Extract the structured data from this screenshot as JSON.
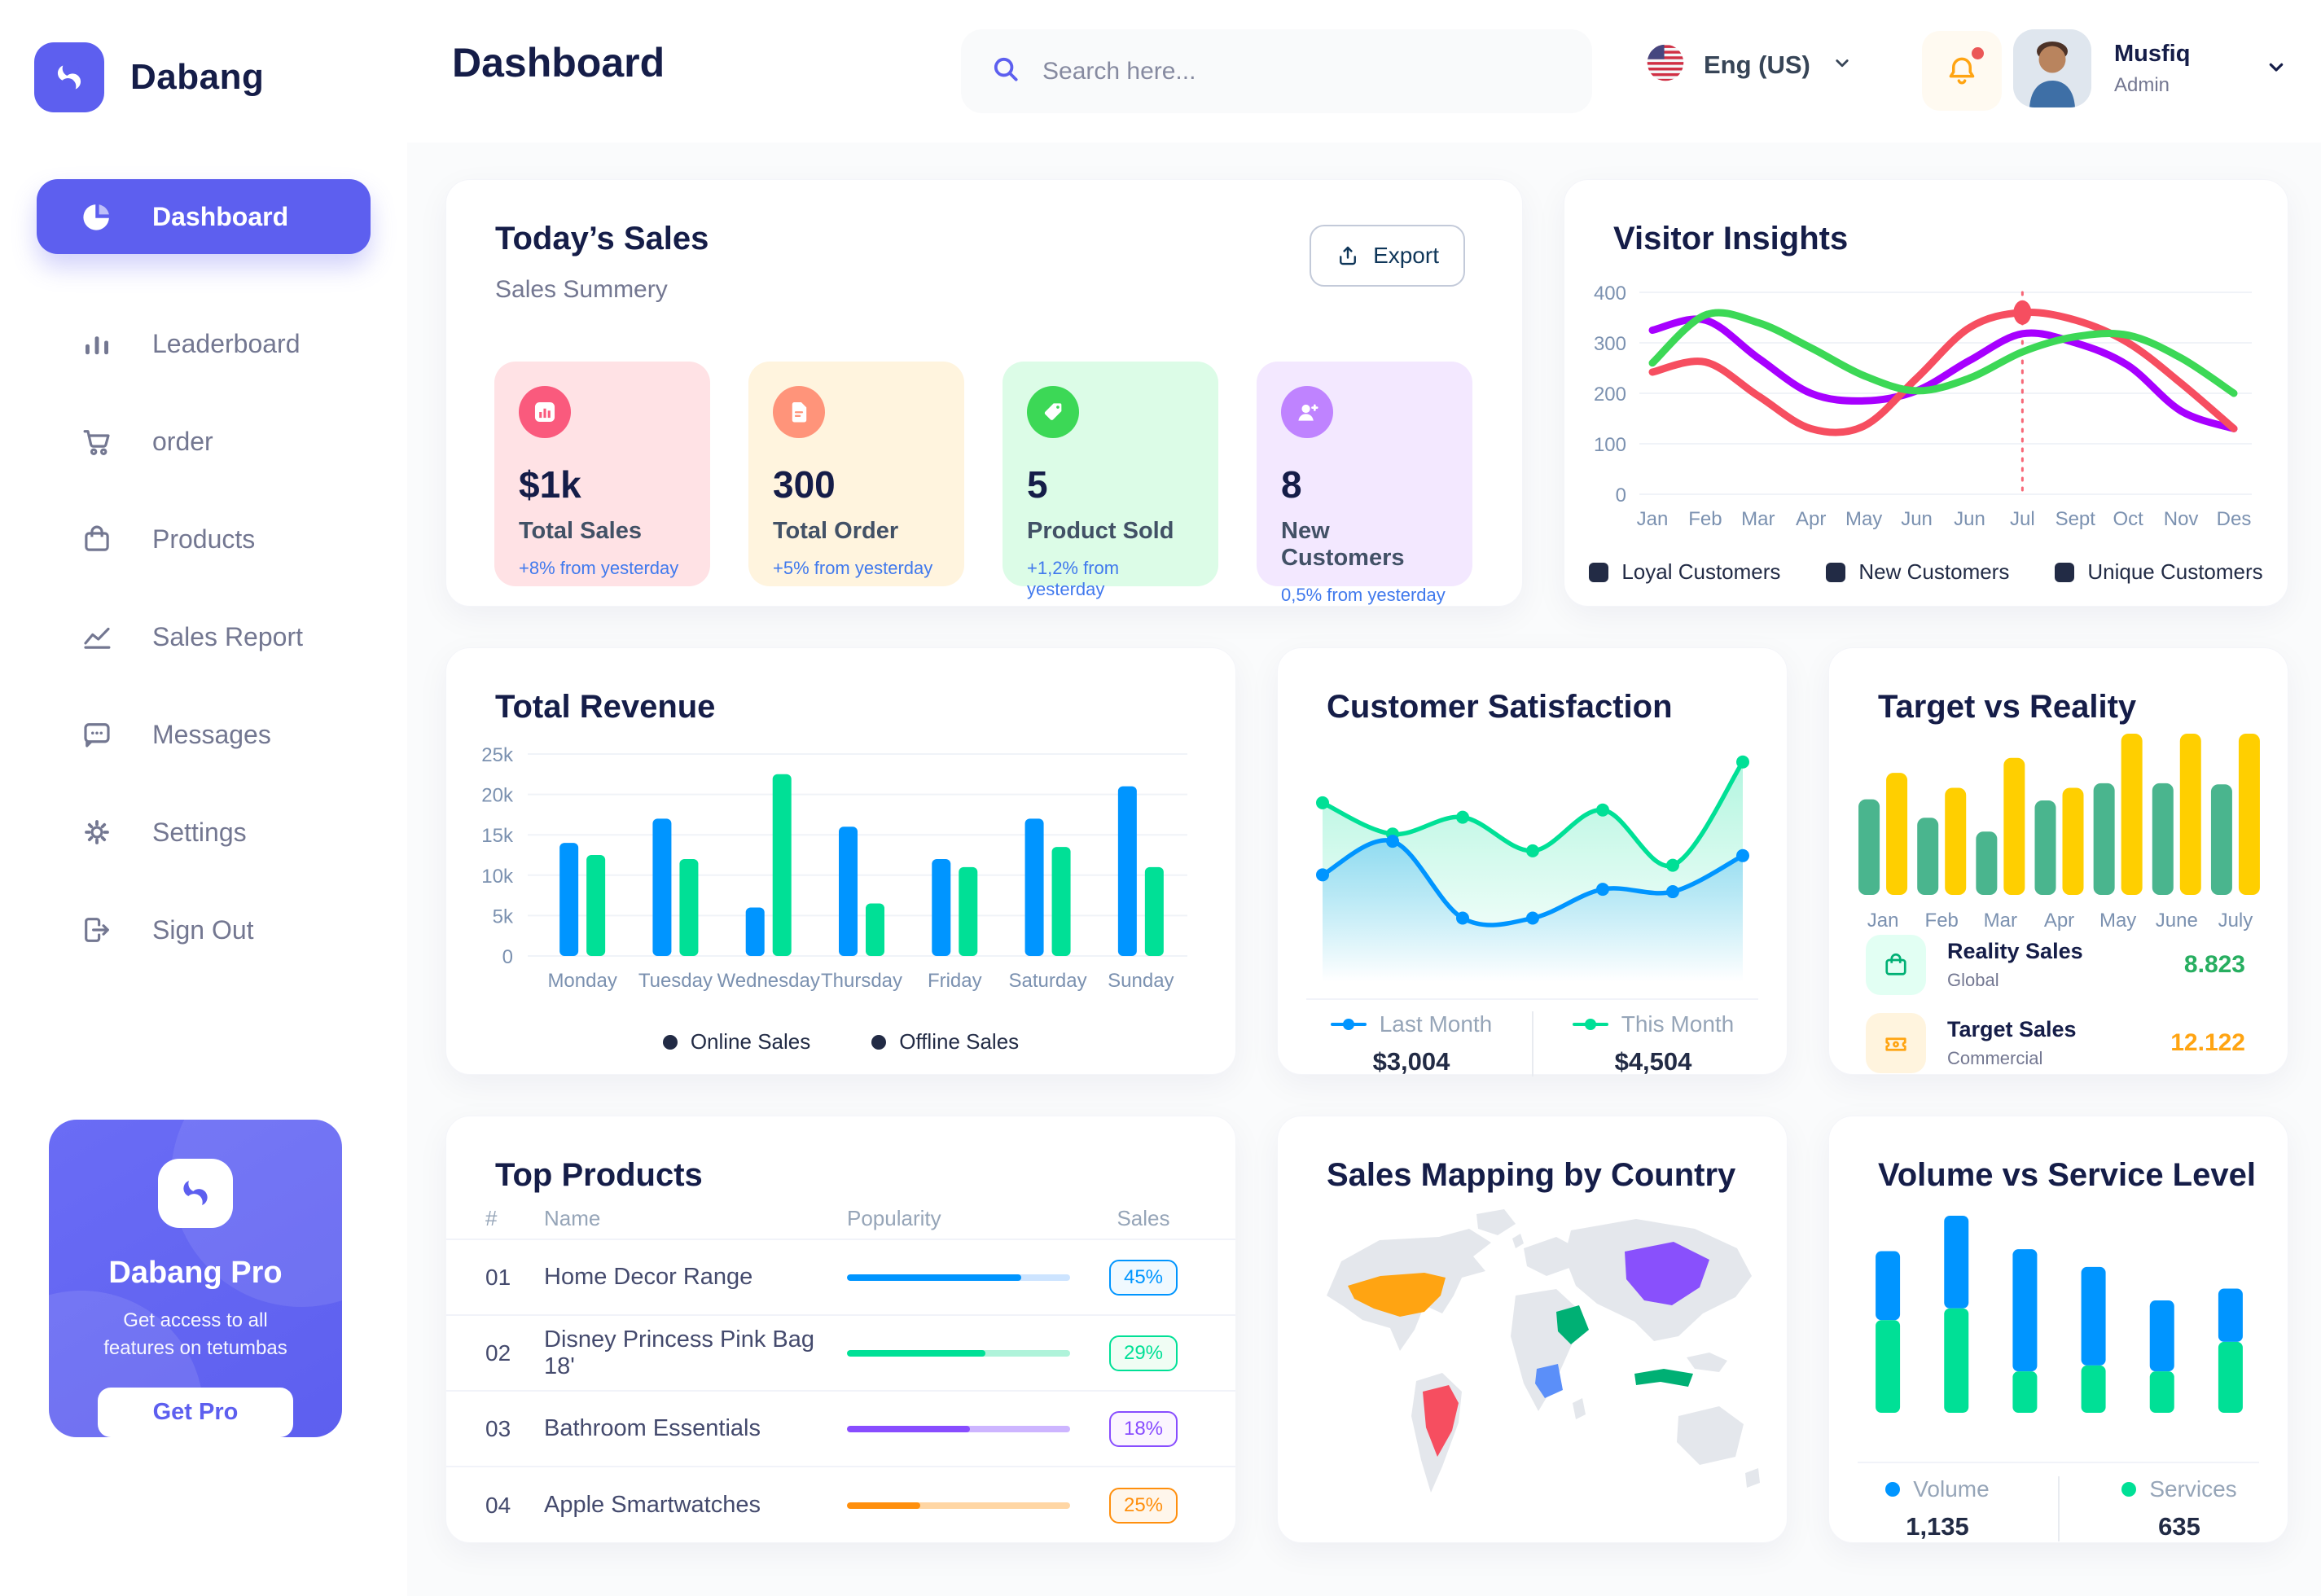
{
  "brand": {
    "name": "Dabang"
  },
  "header": {
    "page_title": "Dashboard",
    "search_placeholder": "Search here...",
    "language": "Eng (US)",
    "user_name": "Musfiq",
    "user_role": "Admin"
  },
  "sidebar": {
    "items": [
      {
        "label": "Dashboard"
      },
      {
        "label": "Leaderboard"
      },
      {
        "label": "order"
      },
      {
        "label": "Products"
      },
      {
        "label": "Sales Report"
      },
      {
        "label": "Messages"
      },
      {
        "label": "Settings"
      },
      {
        "label": "Sign Out"
      }
    ],
    "promo": {
      "title": "Dabang Pro",
      "description": "Get access to all features on tetumbas",
      "cta": "Get Pro"
    }
  },
  "today_sales": {
    "title": "Today’s Sales",
    "subtitle": "Sales Summery",
    "export_label": "Export",
    "stats": [
      {
        "value": "$1k",
        "label": "Total Sales",
        "delta": "+8% from yesterday",
        "bg": "#FFE2E5",
        "icon_bg": "#FA5A7D",
        "delta_color": "#4079ED"
      },
      {
        "value": "300",
        "label": "Total Order",
        "delta": "+5% from yesterday",
        "bg": "#FFF4DE",
        "icon_bg": "#FF947A",
        "delta_color": "#4079ED"
      },
      {
        "value": "5",
        "label": "Product Sold",
        "delta": "+1,2% from yesterday",
        "bg": "#DCFCE7",
        "icon_bg": "#3CD856",
        "delta_color": "#4079ED"
      },
      {
        "value": "8",
        "label": "New Customers",
        "delta": "0,5% from yesterday",
        "bg": "#F3E8FF",
        "icon_bg": "#BF83FF",
        "delta_color": "#4079ED"
      }
    ]
  },
  "top_products": {
    "title": "Top Products",
    "headers": [
      "#",
      "Name",
      "Popularity",
      "Sales"
    ],
    "rows": [
      {
        "num": "01",
        "name": "Home Decor Range",
        "percent": "45%",
        "fill": 0.78,
        "color": "#0095FF",
        "track": "#CDE4FF",
        "badge_bg": "#F0F9FF"
      },
      {
        "num": "02",
        "name": "Disney Princess Pink Bag 18'",
        "percent": "29%",
        "fill": 0.62,
        "color": "#00E096",
        "track": "#AFF3DA",
        "badge_bg": "#F0FDF4"
      },
      {
        "num": "03",
        "name": "Bathroom Essentials",
        "percent": "18%",
        "fill": 0.55,
        "color": "#884DFF",
        "track": "#CDB5FF",
        "badge_bg": "#FBF5FF"
      },
      {
        "num": "04",
        "name": "Apple Smartwatches",
        "percent": "25%",
        "fill": 0.33,
        "color": "#FF8F0D",
        "track": "#FFD6A4",
        "badge_bg": "#FFF6EB"
      }
    ]
  },
  "sales_map": {
    "title": "Sales Mapping by Country",
    "base": "#E4E7EC",
    "countries": {
      "usa": "#FFA412",
      "brazil": "#F64E60",
      "saudi": "#00B074",
      "drc": "#5B8FF9",
      "china": "#8950FC",
      "indonesia": "#00B074"
    }
  },
  "chart_data": [
    {
      "id": "visitor_insights",
      "type": "line",
      "title": "Visitor Insights",
      "x": [
        "Jan",
        "Feb",
        "Mar",
        "Apr",
        "May",
        "Jun",
        "Jun",
        "Jul",
        "Sept",
        "Oct",
        "Nov",
        "Des"
      ],
      "yticks": [
        0,
        100,
        200,
        300,
        400
      ],
      "ylim": [
        0,
        400
      ],
      "grid": true,
      "legend_position": "bottom",
      "series": [
        {
          "name": "Loyal Customers",
          "color": "#A700FF",
          "values": [
            325,
            345,
            270,
            200,
            185,
            205,
            265,
            318,
            300,
            255,
            165,
            130
          ]
        },
        {
          "name": "New Customers",
          "color": "#F64E60",
          "values": [
            242,
            262,
            195,
            130,
            135,
            230,
            330,
            360,
            345,
            300,
            220,
            130
          ]
        },
        {
          "name": "Unique Customers",
          "color": "#3CD856",
          "values": [
            260,
            355,
            340,
            290,
            235,
            205,
            230,
            282,
            312,
            315,
            270,
            200
          ]
        }
      ],
      "marker": {
        "series": 1,
        "index": 7
      }
    },
    {
      "id": "total_revenue",
      "type": "bar",
      "title": "Total Revenue",
      "categories": [
        "Monday",
        "Tuesday",
        "Wednesday",
        "Thursday",
        "Friday",
        "Saturday",
        "Sunday"
      ],
      "yticks": [
        "0",
        "5k",
        "10k",
        "15k",
        "20k",
        "25k"
      ],
      "ylim": [
        0,
        25000
      ],
      "grid": true,
      "legend_position": "bottom",
      "series": [
        {
          "name": "Online Sales",
          "color": "#0095FF",
          "values": [
            14000,
            17000,
            6000,
            16000,
            12000,
            17000,
            21000
          ]
        },
        {
          "name": "Offline Sales",
          "color": "#00E096",
          "values": [
            12500,
            12000,
            22500,
            6500,
            11000,
            13500,
            11000
          ]
        }
      ]
    },
    {
      "id": "customer_satisfaction",
      "type": "area",
      "title": "Customer Satisfaction",
      "ylim": [
        0,
        100
      ],
      "grid": false,
      "legend_position": "bottom",
      "series": [
        {
          "name": "Last Month",
          "color": "#0095FF",
          "value_label": "$3,004",
          "values": [
            48,
            62,
            30,
            30,
            42,
            41,
            56
          ]
        },
        {
          "name": "This Month",
          "color": "#00E096",
          "value_label": "$4,504",
          "values": [
            78,
            65,
            72,
            58,
            75,
            52,
            95
          ]
        }
      ]
    },
    {
      "id": "target_reality",
      "type": "bar",
      "title": "Target vs Reality",
      "categories": [
        "Jan",
        "Feb",
        "Mar",
        "Apr",
        "May",
        "June",
        "July"
      ],
      "ylim": [
        0,
        14
      ],
      "grid": false,
      "legend_position": "bottom",
      "series": [
        {
          "name": "Reality Sales",
          "color": "#4AB58E",
          "values": [
            8.3,
            6.7,
            5.5,
            8.2,
            9.7,
            9.7,
            9.6
          ]
        },
        {
          "name": "Target Sales",
          "color": "#FFCF00",
          "values": [
            10.6,
            9.3,
            11.9,
            9.3,
            14,
            14,
            14
          ]
        }
      ],
      "legend": [
        {
          "label": "Reality Sales",
          "sublabel": "Global",
          "value": "8.823",
          "value_color": "#27AE60",
          "icon_bg": "#E2FFF3"
        },
        {
          "label": "Target Sales",
          "sublabel": "Commercial",
          "value": "12.122",
          "value_color": "#FFA412",
          "icon_bg": "#FFF4DE"
        }
      ]
    },
    {
      "id": "volume_service",
      "type": "stacked-bar",
      "title": "Volume vs Service Level",
      "ylim": [
        0,
        100
      ],
      "grid": false,
      "legend_position": "bottom",
      "series": [
        {
          "name": "Volume",
          "color": "#0095FF",
          "total_label": "1,135",
          "values": [
            35,
            47,
            62,
            50,
            36,
            27
          ]
        },
        {
          "name": "Services",
          "color": "#00E096",
          "total_label": "635",
          "values": [
            47,
            53,
            21,
            24,
            21,
            36
          ]
        }
      ]
    }
  ]
}
